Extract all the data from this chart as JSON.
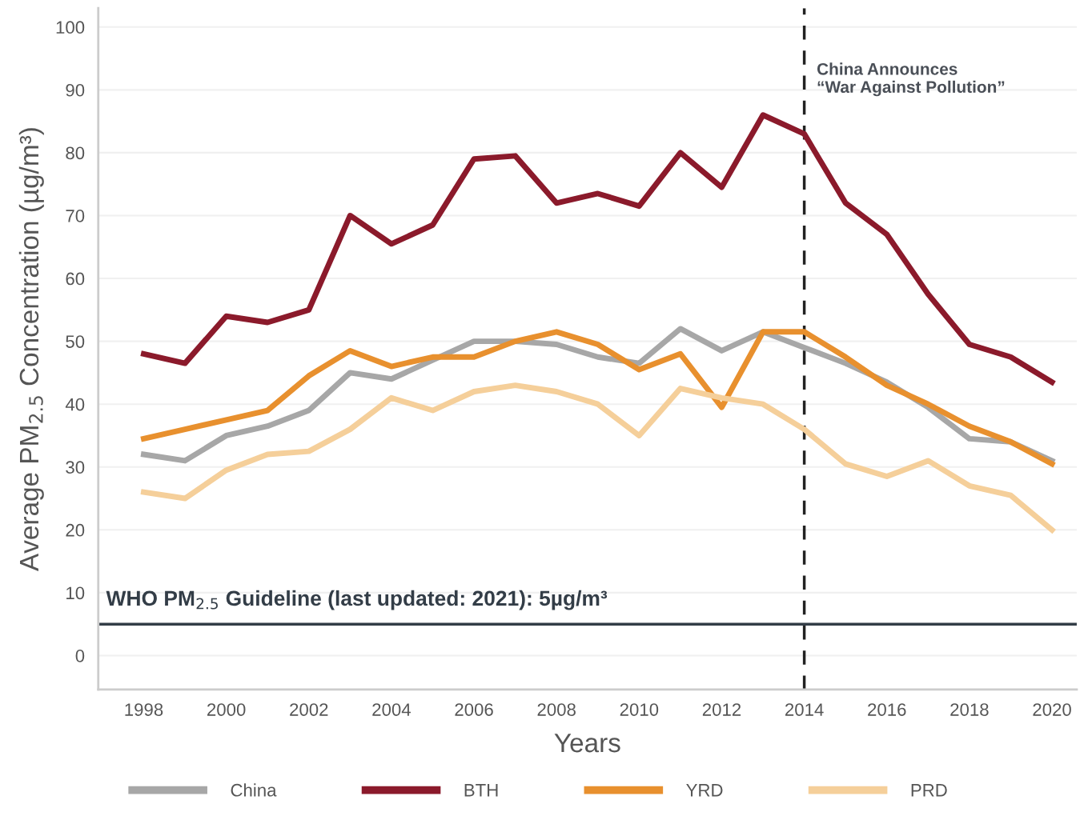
{
  "chart_data": {
    "type": "line",
    "xlabel": "Years",
    "ylabel": "Average PM$_{2.5}$ Concentration (µg/m³)",
    "x": [
      1998,
      1999,
      2000,
      2001,
      2002,
      2003,
      2004,
      2005,
      2006,
      2007,
      2008,
      2009,
      2010,
      2011,
      2012,
      2013,
      2014,
      2015,
      2016,
      2017,
      2018,
      2019,
      2020
    ],
    "series": [
      {
        "name": "China",
        "color": "#a7a7a7",
        "values": [
          32,
          31,
          35,
          36.5,
          39,
          45,
          44,
          47,
          50,
          50,
          49.5,
          47.5,
          46.5,
          52,
          48.5,
          51.5,
          49,
          46.5,
          43.5,
          39.5,
          34.5,
          34,
          31
        ]
      },
      {
        "name": "BTH",
        "color": "#8b1a2b",
        "values": [
          48,
          46.5,
          54,
          53,
          55,
          70,
          65.5,
          68.5,
          79,
          79.5,
          72,
          73.5,
          71.5,
          80,
          74.5,
          86,
          83,
          72,
          67,
          57.5,
          49.5,
          47.5,
          43.5
        ]
      },
      {
        "name": "YRD",
        "color": "#e8902e",
        "values": [
          34.5,
          36,
          37.5,
          39,
          44.5,
          48.5,
          46,
          47.5,
          47.5,
          50,
          51.5,
          49.5,
          45.5,
          48,
          39.5,
          51.5,
          51.5,
          47.5,
          43,
          40,
          36.5,
          34,
          30.5
        ]
      },
      {
        "name": "PRD",
        "color": "#f5cf9a",
        "values": [
          26,
          25,
          29.5,
          32,
          32.5,
          36,
          41,
          39,
          42,
          43,
          42,
          40,
          35,
          42.5,
          41,
          40,
          36,
          30.5,
          28.5,
          31,
          27,
          25.5,
          20
        ]
      }
    ],
    "xlim": [
      1996.9,
      2020.6
    ],
    "xticks": [
      1998,
      2000,
      2002,
      2004,
      2006,
      2008,
      2010,
      2012,
      2014,
      2016,
      2018,
      2020
    ],
    "ylim": [
      -5.4,
      103
    ],
    "yticks": [
      0,
      10,
      20,
      30,
      40,
      50,
      60,
      70,
      80,
      90,
      100
    ],
    "ref_lines": [
      {
        "axis": "y",
        "value": 5,
        "label": "WHO PM$_{2.5}$ Guideline (last updated: 2021): 5µg/m³",
        "color": "#333d47",
        "line_style": "solid"
      },
      {
        "axis": "x",
        "value": 2014,
        "label": "China Announces\n“War Against Pollution”",
        "color": "#222222",
        "line_style": "dashed"
      }
    ],
    "grid": "y",
    "legend": "bottom",
    "marker": "none",
    "line_style": "solid"
  }
}
